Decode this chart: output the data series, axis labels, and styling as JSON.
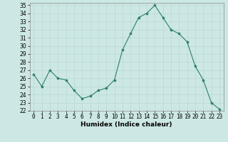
{
  "x": [
    0,
    1,
    2,
    3,
    4,
    5,
    6,
    7,
    8,
    9,
    10,
    11,
    12,
    13,
    14,
    15,
    16,
    17,
    18,
    19,
    20,
    21,
    22,
    23
  ],
  "y": [
    26.5,
    25.0,
    27.0,
    26.0,
    25.8,
    24.5,
    23.5,
    23.8,
    24.5,
    24.8,
    25.8,
    29.5,
    31.5,
    33.5,
    34.0,
    35.0,
    33.5,
    32.0,
    31.5,
    30.5,
    27.5,
    25.8,
    23.0,
    22.2
  ],
  "line_color": "#2d7d6e",
  "marker": "*",
  "marker_size": 3,
  "xlabel": "Humidex (Indice chaleur)",
  "ylim": [
    22,
    35
  ],
  "xlim": [
    -0.5,
    23.5
  ],
  "yticks": [
    22,
    23,
    24,
    25,
    26,
    27,
    28,
    29,
    30,
    31,
    32,
    33,
    34,
    35
  ],
  "xticks": [
    0,
    1,
    2,
    3,
    4,
    5,
    6,
    7,
    8,
    9,
    10,
    11,
    12,
    13,
    14,
    15,
    16,
    17,
    18,
    19,
    20,
    21,
    22,
    23
  ],
  "background_color": "#cde8e4",
  "grid_color": "#b8d8d4",
  "label_fontsize": 6.5,
  "tick_fontsize": 5.5
}
